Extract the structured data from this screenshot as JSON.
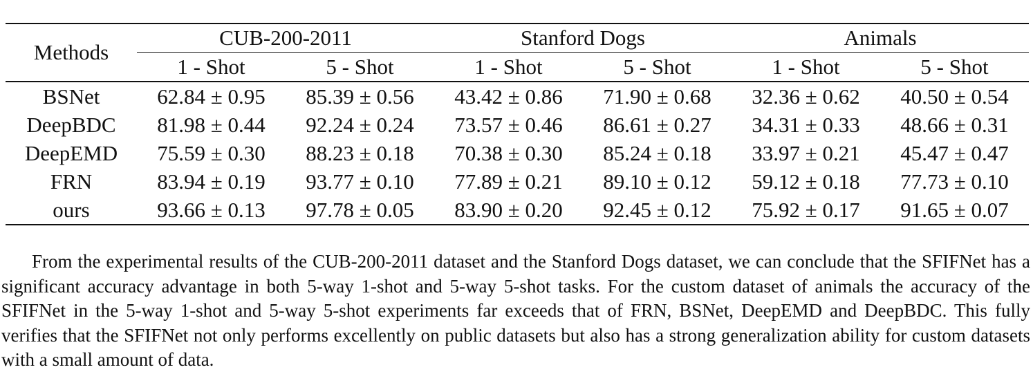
{
  "table": {
    "methods_header": "Methods",
    "groups": [
      "CUB-200-2011",
      "Stanford Dogs",
      "Animals"
    ],
    "subheaders": [
      "1 - Shot",
      "5 - Shot",
      "1 - Shot",
      "5 - Shot",
      "1 - Shot",
      "5 - Shot"
    ],
    "rows": [
      {
        "method": "BSNet",
        "values": [
          "62.84 ± 0.95",
          "85.39 ± 0.56",
          "43.42 ± 0.86",
          "71.90 ± 0.68",
          "32.36 ± 0.62",
          "40.50 ± 0.54"
        ]
      },
      {
        "method": "DeepBDC",
        "values": [
          "81.98 ± 0.44",
          "92.24 ± 0.24",
          "73.57 ± 0.46",
          "86.61 ± 0.27",
          "34.31 ± 0.33",
          "48.66 ± 0.31"
        ]
      },
      {
        "method": "DeepEMD",
        "values": [
          "75.59 ± 0.30",
          "88.23 ± 0.18",
          "70.38 ± 0.30",
          "85.24 ± 0.18",
          "33.97 ± 0.21",
          "45.47 ± 0.47"
        ]
      },
      {
        "method": "FRN",
        "values": [
          "83.94 ± 0.19",
          "93.77 ± 0.10",
          "77.89 ± 0.21",
          "89.10 ± 0.12",
          "59.12 ± 0.18",
          "77.73 ± 0.10"
        ]
      },
      {
        "method": "ours",
        "values": [
          "93.66 ± 0.13",
          "97.78 ± 0.05",
          "83.90 ± 0.20",
          "92.45 ± 0.12",
          "75.92 ± 0.17",
          "91.65 ± 0.07"
        ]
      }
    ]
  },
  "paragraph": "From the experimental results of the CUB-200-2011 dataset and the Stanford Dogs dataset, we can conclude that the SFIFNet has a significant accuracy advantage in both 5-way 1-shot and 5-way 5-shot tasks. For the custom dataset of animals the accuracy of the SFIFNet in the 5-way 1-shot and 5-way 5-shot experiments far exceeds that of FRN, BSNet, DeepEMD and DeepBDC. This fully verifies that the SFIFNet not only performs excellently on public datasets but also has a strong generalization ability for custom datasets with a small amount of data."
}
